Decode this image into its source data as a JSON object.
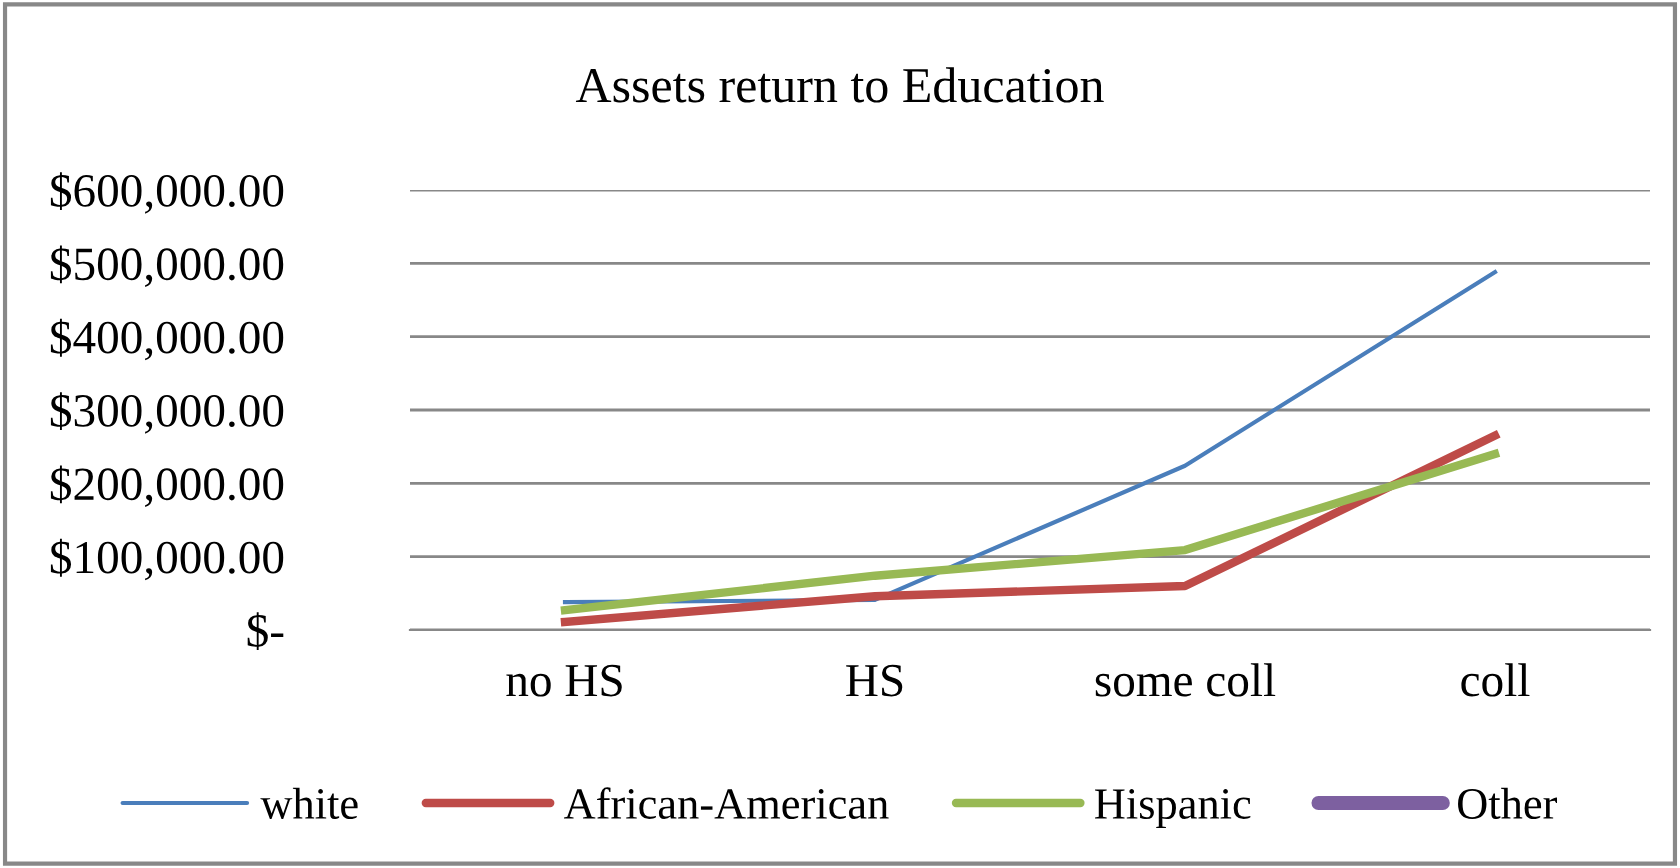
{
  "chart_data": {
    "type": "line",
    "title": "Assets return to Education",
    "categories": [
      "no HS",
      "HS",
      "some coll",
      "coll"
    ],
    "series": [
      {
        "name": "white",
        "color": "#4a7ebb",
        "values": [
          38000,
          41000,
          224000,
          488000
        ]
      },
      {
        "name": "African-American",
        "color": "#be4b48",
        "values": [
          11000,
          46000,
          60000,
          265000
        ]
      },
      {
        "name": "Hispanic",
        "color": "#98b954",
        "values": [
          27000,
          74000,
          109000,
          240000
        ]
      },
      {
        "name": "Other",
        "color": "#7d60a0",
        "values": [
          null,
          null,
          null,
          null
        ]
      }
    ],
    "ylim": [
      0,
      600000
    ],
    "yticks": [
      {
        "value": 0,
        "label": "$-"
      },
      {
        "value": 100000,
        "label": "$100,000.00"
      },
      {
        "value": 200000,
        "label": "$200,000.00"
      },
      {
        "value": 300000,
        "label": "$300,000.00"
      },
      {
        "value": 400000,
        "label": "$400,000.00"
      },
      {
        "value": 500000,
        "label": "$500,000.00"
      },
      {
        "value": 600000,
        "label": "$600,000.00"
      }
    ],
    "grid": "y",
    "legend": "bottom",
    "marker": "none",
    "line_style": "solid"
  }
}
